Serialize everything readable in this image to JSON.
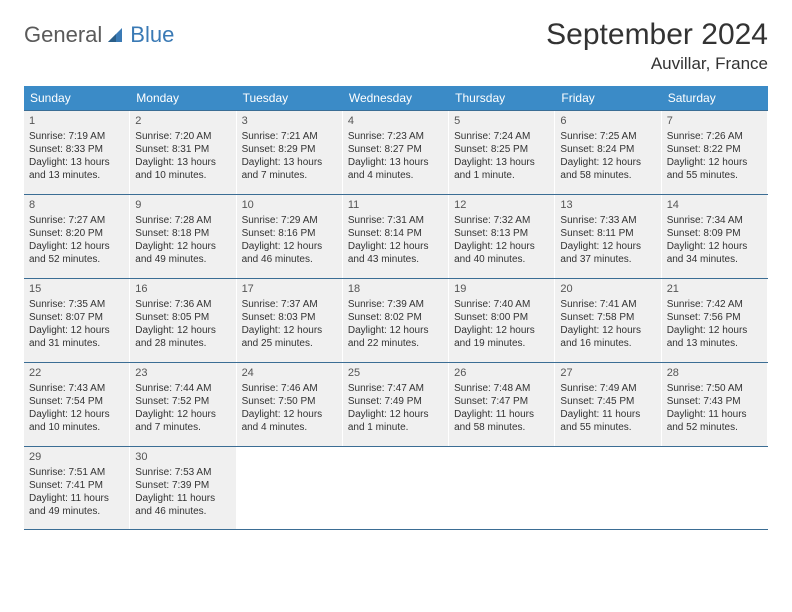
{
  "brand": {
    "name_general": "General",
    "name_blue": "Blue"
  },
  "title": "September 2024",
  "location": "Auvillar, France",
  "weekdays": [
    "Sunday",
    "Monday",
    "Tuesday",
    "Wednesday",
    "Thursday",
    "Friday",
    "Saturday"
  ],
  "colors": {
    "header_bg": "#3b8bc7",
    "header_text": "#ffffff",
    "row_border": "#3b6d94",
    "cell_bg": "#f0f0f0",
    "text": "#333333",
    "logo_gray": "#5a5a5a",
    "logo_blue": "#3a7ab5"
  },
  "weeks": [
    [
      {
        "n": "1",
        "sunrise": "Sunrise: 7:19 AM",
        "sunset": "Sunset: 8:33 PM",
        "day1": "Daylight: 13 hours",
        "day2": "and 13 minutes."
      },
      {
        "n": "2",
        "sunrise": "Sunrise: 7:20 AM",
        "sunset": "Sunset: 8:31 PM",
        "day1": "Daylight: 13 hours",
        "day2": "and 10 minutes."
      },
      {
        "n": "3",
        "sunrise": "Sunrise: 7:21 AM",
        "sunset": "Sunset: 8:29 PM",
        "day1": "Daylight: 13 hours",
        "day2": "and 7 minutes."
      },
      {
        "n": "4",
        "sunrise": "Sunrise: 7:23 AM",
        "sunset": "Sunset: 8:27 PM",
        "day1": "Daylight: 13 hours",
        "day2": "and 4 minutes."
      },
      {
        "n": "5",
        "sunrise": "Sunrise: 7:24 AM",
        "sunset": "Sunset: 8:25 PM",
        "day1": "Daylight: 13 hours",
        "day2": "and 1 minute."
      },
      {
        "n": "6",
        "sunrise": "Sunrise: 7:25 AM",
        "sunset": "Sunset: 8:24 PM",
        "day1": "Daylight: 12 hours",
        "day2": "and 58 minutes."
      },
      {
        "n": "7",
        "sunrise": "Sunrise: 7:26 AM",
        "sunset": "Sunset: 8:22 PM",
        "day1": "Daylight: 12 hours",
        "day2": "and 55 minutes."
      }
    ],
    [
      {
        "n": "8",
        "sunrise": "Sunrise: 7:27 AM",
        "sunset": "Sunset: 8:20 PM",
        "day1": "Daylight: 12 hours",
        "day2": "and 52 minutes."
      },
      {
        "n": "9",
        "sunrise": "Sunrise: 7:28 AM",
        "sunset": "Sunset: 8:18 PM",
        "day1": "Daylight: 12 hours",
        "day2": "and 49 minutes."
      },
      {
        "n": "10",
        "sunrise": "Sunrise: 7:29 AM",
        "sunset": "Sunset: 8:16 PM",
        "day1": "Daylight: 12 hours",
        "day2": "and 46 minutes."
      },
      {
        "n": "11",
        "sunrise": "Sunrise: 7:31 AM",
        "sunset": "Sunset: 8:14 PM",
        "day1": "Daylight: 12 hours",
        "day2": "and 43 minutes."
      },
      {
        "n": "12",
        "sunrise": "Sunrise: 7:32 AM",
        "sunset": "Sunset: 8:13 PM",
        "day1": "Daylight: 12 hours",
        "day2": "and 40 minutes."
      },
      {
        "n": "13",
        "sunrise": "Sunrise: 7:33 AM",
        "sunset": "Sunset: 8:11 PM",
        "day1": "Daylight: 12 hours",
        "day2": "and 37 minutes."
      },
      {
        "n": "14",
        "sunrise": "Sunrise: 7:34 AM",
        "sunset": "Sunset: 8:09 PM",
        "day1": "Daylight: 12 hours",
        "day2": "and 34 minutes."
      }
    ],
    [
      {
        "n": "15",
        "sunrise": "Sunrise: 7:35 AM",
        "sunset": "Sunset: 8:07 PM",
        "day1": "Daylight: 12 hours",
        "day2": "and 31 minutes."
      },
      {
        "n": "16",
        "sunrise": "Sunrise: 7:36 AM",
        "sunset": "Sunset: 8:05 PM",
        "day1": "Daylight: 12 hours",
        "day2": "and 28 minutes."
      },
      {
        "n": "17",
        "sunrise": "Sunrise: 7:37 AM",
        "sunset": "Sunset: 8:03 PM",
        "day1": "Daylight: 12 hours",
        "day2": "and 25 minutes."
      },
      {
        "n": "18",
        "sunrise": "Sunrise: 7:39 AM",
        "sunset": "Sunset: 8:02 PM",
        "day1": "Daylight: 12 hours",
        "day2": "and 22 minutes."
      },
      {
        "n": "19",
        "sunrise": "Sunrise: 7:40 AM",
        "sunset": "Sunset: 8:00 PM",
        "day1": "Daylight: 12 hours",
        "day2": "and 19 minutes."
      },
      {
        "n": "20",
        "sunrise": "Sunrise: 7:41 AM",
        "sunset": "Sunset: 7:58 PM",
        "day1": "Daylight: 12 hours",
        "day2": "and 16 minutes."
      },
      {
        "n": "21",
        "sunrise": "Sunrise: 7:42 AM",
        "sunset": "Sunset: 7:56 PM",
        "day1": "Daylight: 12 hours",
        "day2": "and 13 minutes."
      }
    ],
    [
      {
        "n": "22",
        "sunrise": "Sunrise: 7:43 AM",
        "sunset": "Sunset: 7:54 PM",
        "day1": "Daylight: 12 hours",
        "day2": "and 10 minutes."
      },
      {
        "n": "23",
        "sunrise": "Sunrise: 7:44 AM",
        "sunset": "Sunset: 7:52 PM",
        "day1": "Daylight: 12 hours",
        "day2": "and 7 minutes."
      },
      {
        "n": "24",
        "sunrise": "Sunrise: 7:46 AM",
        "sunset": "Sunset: 7:50 PM",
        "day1": "Daylight: 12 hours",
        "day2": "and 4 minutes."
      },
      {
        "n": "25",
        "sunrise": "Sunrise: 7:47 AM",
        "sunset": "Sunset: 7:49 PM",
        "day1": "Daylight: 12 hours",
        "day2": "and 1 minute."
      },
      {
        "n": "26",
        "sunrise": "Sunrise: 7:48 AM",
        "sunset": "Sunset: 7:47 PM",
        "day1": "Daylight: 11 hours",
        "day2": "and 58 minutes."
      },
      {
        "n": "27",
        "sunrise": "Sunrise: 7:49 AM",
        "sunset": "Sunset: 7:45 PM",
        "day1": "Daylight: 11 hours",
        "day2": "and 55 minutes."
      },
      {
        "n": "28",
        "sunrise": "Sunrise: 7:50 AM",
        "sunset": "Sunset: 7:43 PM",
        "day1": "Daylight: 11 hours",
        "day2": "and 52 minutes."
      }
    ],
    [
      {
        "n": "29",
        "sunrise": "Sunrise: 7:51 AM",
        "sunset": "Sunset: 7:41 PM",
        "day1": "Daylight: 11 hours",
        "day2": "and 49 minutes."
      },
      {
        "n": "30",
        "sunrise": "Sunrise: 7:53 AM",
        "sunset": "Sunset: 7:39 PM",
        "day1": "Daylight: 11 hours",
        "day2": "and 46 minutes."
      },
      {
        "empty": true
      },
      {
        "empty": true
      },
      {
        "empty": true
      },
      {
        "empty": true
      },
      {
        "empty": true
      }
    ]
  ]
}
